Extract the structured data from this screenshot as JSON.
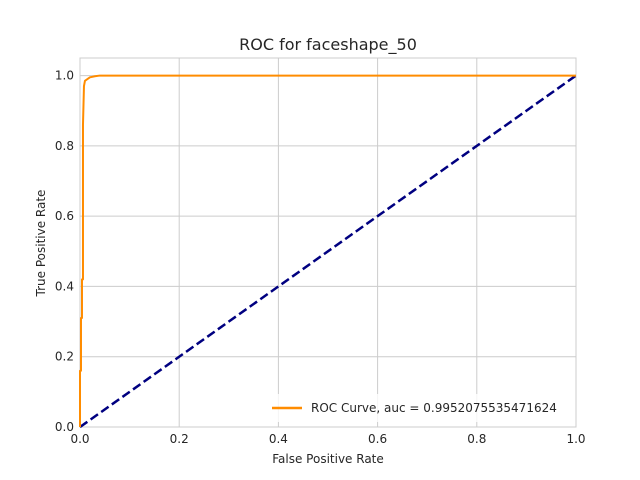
{
  "chart_data": {
    "type": "line",
    "title": "ROC for faceshape_50",
    "xlabel": "False Positive Rate",
    "ylabel": "True Positive Rate",
    "xlim": [
      0,
      1
    ],
    "ylim": [
      0,
      1.05
    ],
    "xticks": [
      "0.0",
      "0.2",
      "0.4",
      "0.6",
      "0.8",
      "1.0"
    ],
    "yticks": [
      "0.0",
      "0.2",
      "0.4",
      "0.6",
      "0.8",
      "1.0"
    ],
    "grid": true,
    "legend_position": "lower-right",
    "series": [
      {
        "name": "ROC Curve, auc = 0.9952075535471624",
        "color": "#ff8c00",
        "style": "solid",
        "x": [
          0,
          0,
          0.002,
          0.002,
          0.004,
          0.004,
          0.006,
          0.006,
          0.008,
          0.01,
          0.015,
          0.02,
          0.03,
          0.04,
          0.05,
          1.0
        ],
        "y": [
          0,
          0.16,
          0.16,
          0.31,
          0.31,
          0.42,
          0.42,
          0.86,
          0.97,
          0.985,
          0.99,
          0.995,
          0.998,
          1.0,
          1.0,
          1.0
        ]
      },
      {
        "name": "",
        "color": "#000080",
        "style": "dashed",
        "x": [
          0,
          1
        ],
        "y": [
          0,
          1
        ]
      }
    ]
  }
}
